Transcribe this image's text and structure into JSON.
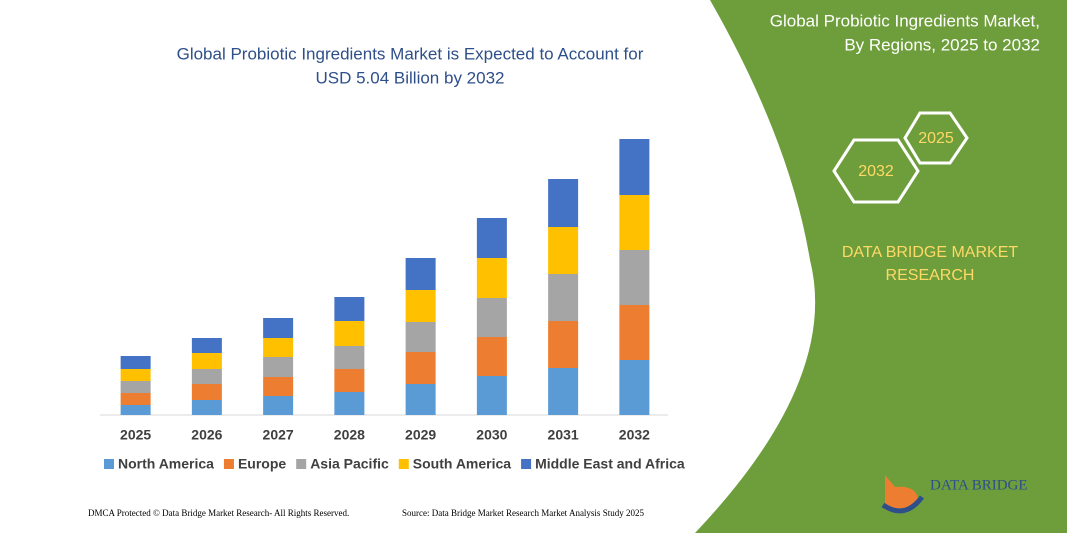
{
  "chart_data": {
    "type": "bar",
    "stacked": true,
    "title": [
      "Global Probiotic Ingredients Market is Expected to Account for",
      "USD 5.04 Billion by 2032"
    ],
    "categories": [
      "2025",
      "2026",
      "2027",
      "2028",
      "2029",
      "2030",
      "2031",
      "2032"
    ],
    "series": [
      {
        "name": "North America",
        "color": "#5b9bd5",
        "values": [
          10,
          15,
          19,
          23,
          31,
          39,
          47,
          55
        ]
      },
      {
        "name": "Europe",
        "color": "#ed7d31",
        "values": [
          12,
          16,
          19,
          23,
          32,
          39,
          47,
          55
        ]
      },
      {
        "name": "Asia Pacific",
        "color": "#a5a5a5",
        "values": [
          12,
          15,
          20,
          23,
          30,
          39,
          47,
          55
        ]
      },
      {
        "name": "South America",
        "color": "#ffc000",
        "values": [
          12,
          16,
          19,
          25,
          32,
          40,
          47,
          55
        ]
      },
      {
        "name": "Middle East and Africa",
        "color": "#4472c4",
        "values": [
          13,
          15,
          20,
          24,
          32,
          40,
          48,
          56
        ]
      }
    ],
    "legend": "bottom"
  },
  "panel": {
    "title": [
      "Global Probiotic Ingredients Market,",
      "By Regions, 2025 to 2032"
    ],
    "hexagons": [
      "2025",
      "2032"
    ],
    "brand": [
      "DATA BRIDGE MARKET",
      "RESEARCH"
    ],
    "logo": "DATA BRIDGE"
  },
  "footer": {
    "left": "DMCA Protected © Data Bridge Market Research-  All Rights Reserved.",
    "right": "Source: Data Bridge Market Research  Market Analysis Study 2025"
  }
}
